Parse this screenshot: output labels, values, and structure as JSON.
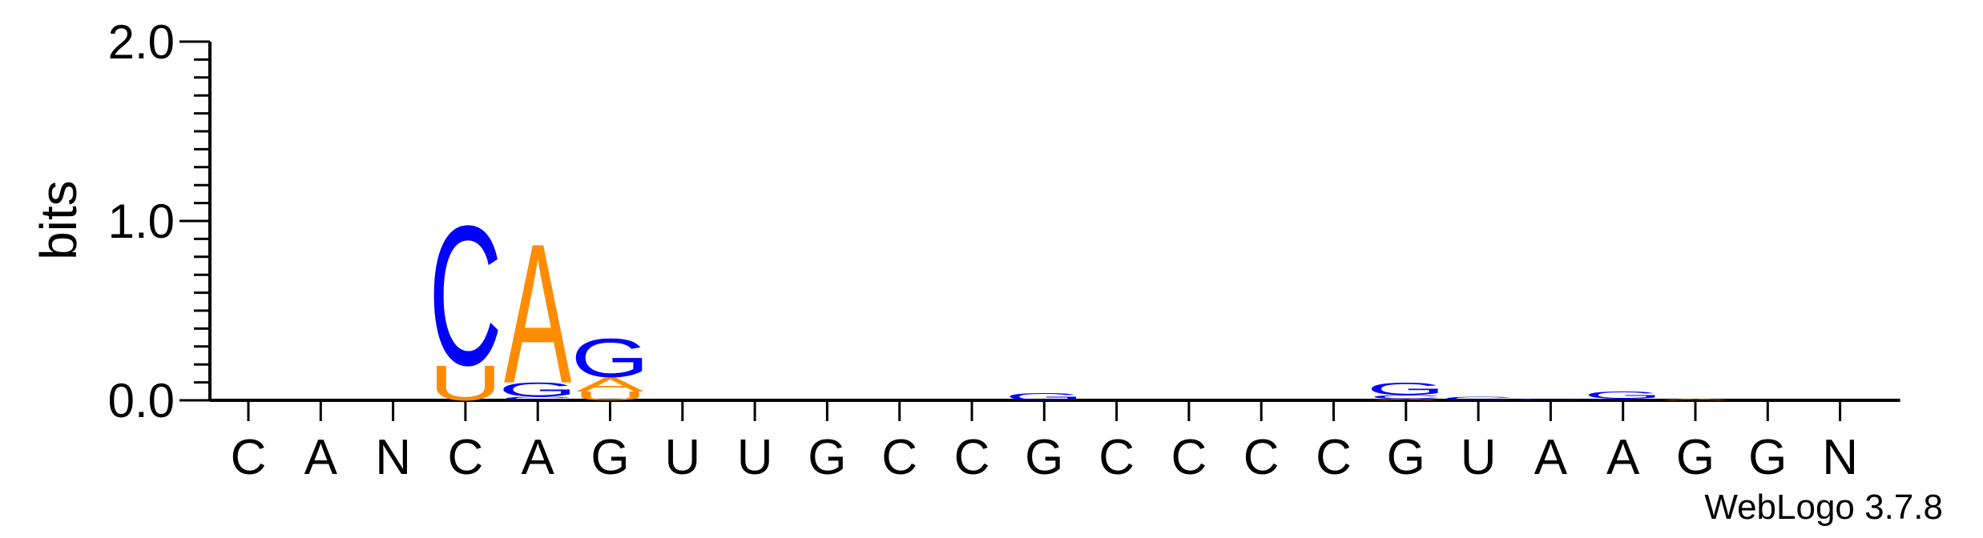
{
  "chart_data": {
    "type": "sequence-logo",
    "ylabel": "bits",
    "ylim": [
      0,
      2.0
    ],
    "yticks": [
      "0.0",
      "1.0",
      "2.0"
    ],
    "positions": [
      "C",
      "A",
      "N",
      "C",
      "A",
      "G",
      "U",
      "U",
      "G",
      "C",
      "C",
      "G",
      "C",
      "C",
      "C",
      "C",
      "G",
      "U",
      "A",
      "A",
      "G",
      "G",
      "N"
    ],
    "colors": {
      "A": "#ff8c00",
      "C": "#0000ff",
      "G": "#0000ff",
      "U": "#ff8c00",
      "N": "#0000ff"
    },
    "stacks": [
      [],
      [],
      [],
      [
        {
          "letter": "U",
          "bits": 0.2
        },
        {
          "letter": "C",
          "bits": 0.8
        }
      ],
      [
        {
          "letter": "C",
          "bits": 0.02
        },
        {
          "letter": "G",
          "bits": 0.08
        },
        {
          "letter": "A",
          "bits": 0.8
        }
      ],
      [
        {
          "letter": "U",
          "bits": 0.05
        },
        {
          "letter": "A",
          "bits": 0.08
        },
        {
          "letter": "G",
          "bits": 0.22
        }
      ],
      [],
      [],
      [],
      [],
      [],
      [
        {
          "letter": "G",
          "bits": 0.04
        }
      ],
      [],
      [],
      [],
      [],
      [
        {
          "letter": "A",
          "bits": 0.01
        },
        {
          "letter": "C",
          "bits": 0.02
        },
        {
          "letter": "G",
          "bits": 0.07
        }
      ],
      [
        {
          "letter": "C",
          "bits": 0.02
        }
      ],
      [
        {
          "letter": "C",
          "bits": 0.01
        }
      ],
      [
        {
          "letter": "C",
          "bits": 0.01
        },
        {
          "letter": "G",
          "bits": 0.04
        }
      ],
      [
        {
          "letter": "A",
          "bits": 0.01
        }
      ],
      [],
      []
    ]
  },
  "footer": {
    "credit": "WebLogo 3.7.8"
  }
}
